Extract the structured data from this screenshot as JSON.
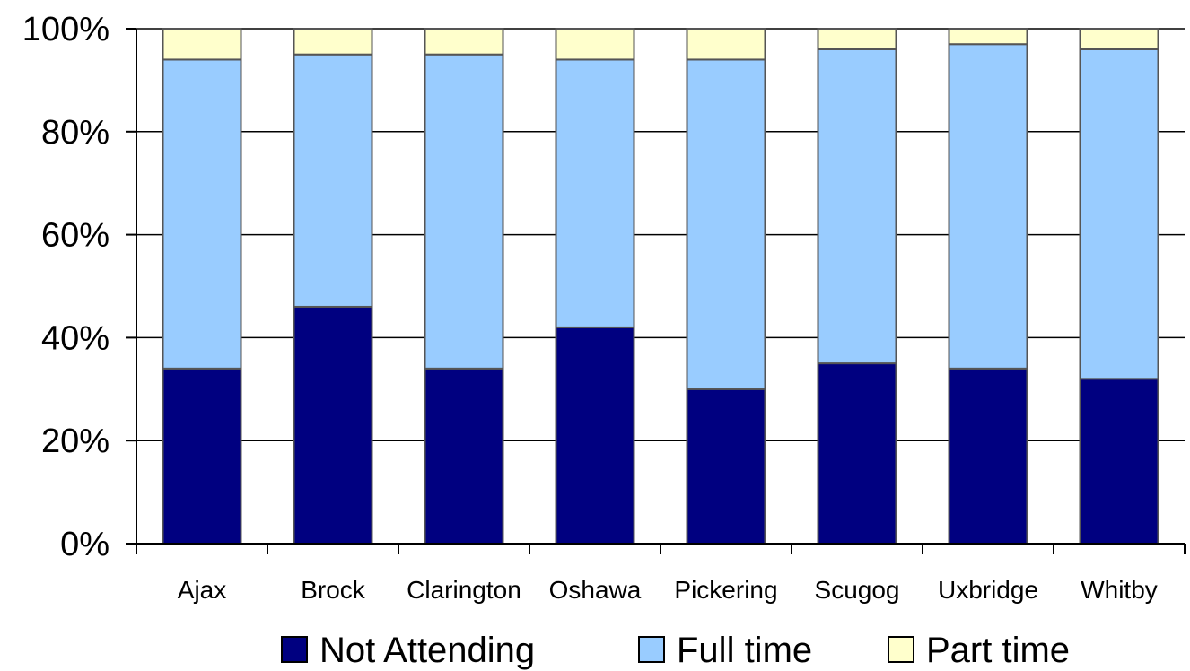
{
  "chart_data": {
    "type": "bar",
    "stacked": true,
    "percent": true,
    "categories": [
      "Ajax",
      "Brock",
      "Clarington",
      "Oshawa",
      "Pickering",
      "Scugog",
      "Uxbridge",
      "Whitby"
    ],
    "series": [
      {
        "name": "Not Attending",
        "color": "#000080",
        "values": [
          34,
          46,
          34,
          42,
          30,
          35,
          34,
          32
        ]
      },
      {
        "name": "Full time",
        "color": "#99CCFF",
        "values": [
          60,
          49,
          61,
          52,
          64,
          61,
          63,
          64
        ]
      },
      {
        "name": "Part time",
        "color": "#FFFFCC",
        "values": [
          6,
          5,
          5,
          6,
          6,
          4,
          3,
          4
        ]
      }
    ],
    "yticks": [
      "0%",
      "20%",
      "40%",
      "60%",
      "80%",
      "100%"
    ],
    "ylim": [
      0,
      100
    ],
    "grid": true,
    "legend_position": "bottom",
    "title": "",
    "xlabel": "",
    "ylabel": ""
  }
}
